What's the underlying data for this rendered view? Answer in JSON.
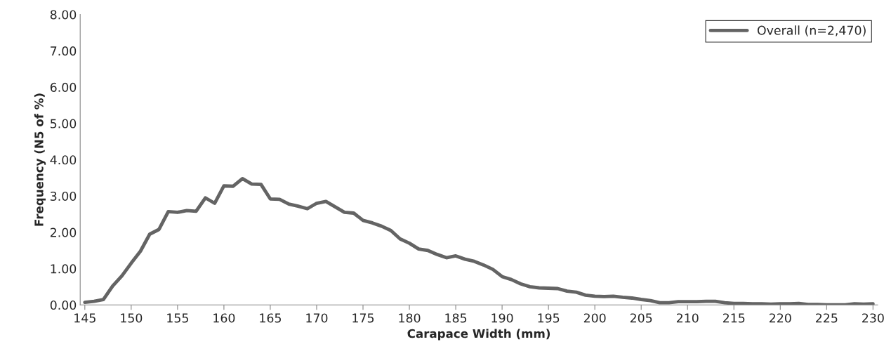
{
  "chart_data": {
    "type": "line",
    "xlabel": "Carapace Width (mm)",
    "ylabel": "Frequency (N5 of %)",
    "x": [
      145,
      146,
      147,
      148,
      149,
      150,
      151,
      152,
      153,
      154,
      155,
      156,
      157,
      158,
      159,
      160,
      161,
      162,
      163,
      164,
      165,
      166,
      167,
      168,
      169,
      170,
      171,
      172,
      173,
      174,
      175,
      176,
      177,
      178,
      179,
      180,
      181,
      182,
      183,
      184,
      185,
      186,
      187,
      188,
      189,
      190,
      191,
      192,
      193,
      194,
      195,
      196,
      197,
      198,
      199,
      200,
      201,
      202,
      203,
      204,
      205,
      206,
      207,
      208,
      209,
      210,
      211,
      212,
      213,
      214,
      215,
      216,
      217,
      218,
      219,
      220,
      221,
      222,
      223,
      224,
      225,
      226,
      227,
      228,
      229,
      230
    ],
    "series": [
      {
        "name": "Overall (n=2,470)",
        "color": "#646464",
        "values": [
          0.07,
          0.1,
          0.15,
          0.52,
          0.8,
          1.15,
          1.48,
          1.95,
          2.08,
          2.57,
          2.55,
          2.6,
          2.58,
          2.95,
          2.8,
          3.28,
          3.27,
          3.48,
          3.33,
          3.32,
          2.92,
          2.91,
          2.78,
          2.72,
          2.65,
          2.8,
          2.85,
          2.7,
          2.55,
          2.53,
          2.33,
          2.26,
          2.17,
          2.05,
          1.82,
          1.7,
          1.54,
          1.5,
          1.39,
          1.3,
          1.35,
          1.26,
          1.2,
          1.1,
          0.98,
          0.78,
          0.7,
          0.58,
          0.5,
          0.47,
          0.46,
          0.45,
          0.38,
          0.35,
          0.27,
          0.24,
          0.23,
          0.24,
          0.21,
          0.19,
          0.15,
          0.12,
          0.06,
          0.06,
          0.09,
          0.09,
          0.09,
          0.1,
          0.1,
          0.06,
          0.04,
          0.04,
          0.03,
          0.03,
          0.02,
          0.03,
          0.03,
          0.04,
          0.01,
          0.01,
          0.0,
          0.0,
          0.0,
          0.03,
          0.02,
          0.03
        ]
      }
    ],
    "xlim": [
      144.5,
      230.5
    ],
    "xticks": [
      145,
      150,
      155,
      160,
      165,
      170,
      175,
      180,
      185,
      190,
      195,
      200,
      205,
      210,
      215,
      220,
      225,
      230
    ],
    "ylim": [
      0,
      8
    ],
    "yticks": [
      {
        "value": 0,
        "label": "0.00"
      },
      {
        "value": 1,
        "label": "1.00"
      },
      {
        "value": 2,
        "label": "2.00"
      },
      {
        "value": 3,
        "label": "3.00"
      },
      {
        "value": 4,
        "label": "4.00"
      },
      {
        "value": 5,
        "label": "5.00"
      },
      {
        "value": 6,
        "label": "6.00"
      },
      {
        "value": 7,
        "label": "7.00"
      },
      {
        "value": 8,
        "label": "8.00"
      }
    ],
    "grid": false,
    "legend": "top right",
    "marker": "none",
    "line_style": "solid"
  }
}
